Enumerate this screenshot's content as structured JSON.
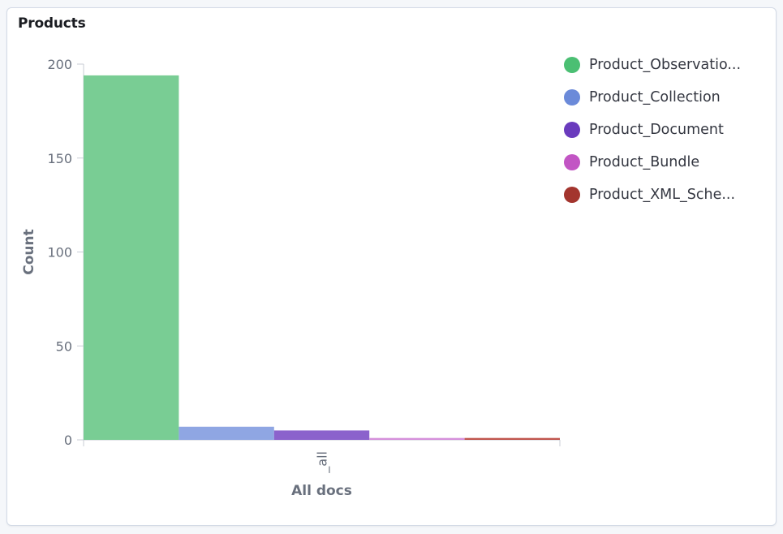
{
  "panel": {
    "title": "Products"
  },
  "chart_data": {
    "type": "bar",
    "title": "Products",
    "xlabel": "All docs",
    "ylabel": "Count",
    "categories": [
      "_all"
    ],
    "ylim": [
      0,
      200
    ],
    "yticks": [
      0,
      50,
      100,
      150,
      200
    ],
    "grid": false,
    "legend_position": "right",
    "series": [
      {
        "name": "Product_Observational",
        "label": "Product_Observatio...",
        "values": [
          194
        ],
        "color": "#54b399"
      },
      {
        "name": "Product_Collection",
        "label": "Product_Collection",
        "values": [
          7
        ],
        "color": "#6092c0"
      },
      {
        "name": "Product_Document",
        "label": "Product_Document",
        "values": [
          5
        ],
        "color": "#5f3dc4"
      },
      {
        "name": "Product_Bundle",
        "label": "Product_Bundle",
        "values": [
          1
        ],
        "color": "#c44ac4"
      },
      {
        "name": "Product_XML_Schema",
        "label": "Product_XML_Sche...",
        "values": [
          1
        ],
        "color": "#a3352e"
      }
    ]
  },
  "legend_colors": [
    "#4bbf73",
    "#6b8ad9",
    "#6a3bbd",
    "#c255c4",
    "#a3352e"
  ],
  "bar_colors": [
    "#79cd94",
    "#8fa6e3",
    "#8b62cc",
    "#d58fdb",
    "#c0554d"
  ]
}
